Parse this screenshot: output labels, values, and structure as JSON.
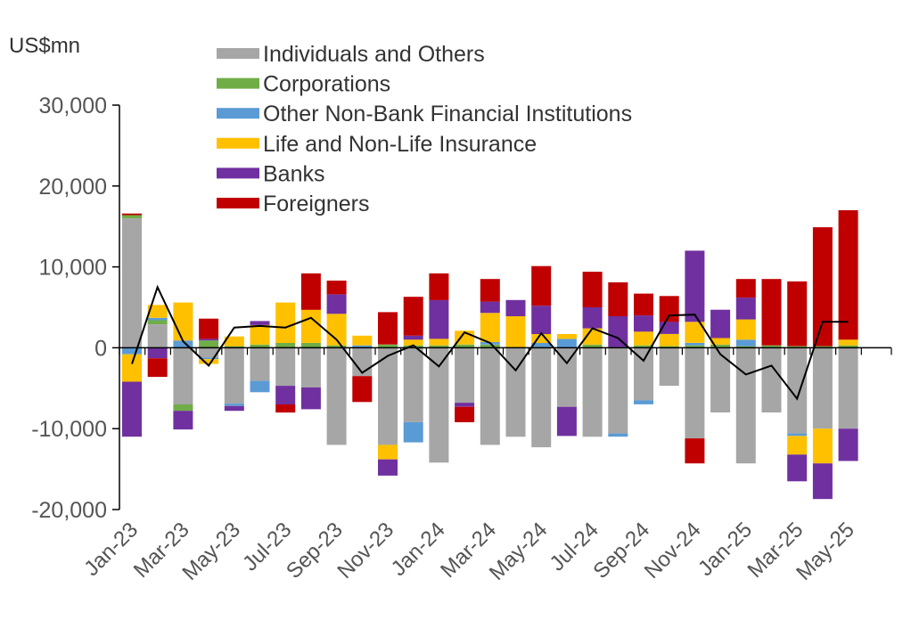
{
  "chart_data": {
    "type": "bar",
    "stacked": true,
    "unit_label": "US$mn",
    "title": "",
    "xlabel": "",
    "ylabel": "",
    "ylim": [
      -20000,
      30000
    ],
    "y_ticks": [
      30000,
      20000,
      10000,
      0,
      -10000,
      -20000
    ],
    "y_tick_labels": [
      "30,000",
      "20,000",
      "10,000",
      "0",
      "-10,000",
      "-20,000"
    ],
    "grid": false,
    "legend_position": "top-left",
    "categories": [
      "Jan-23",
      "Feb-23",
      "Mar-23",
      "Apr-23",
      "May-23",
      "Jun-23",
      "Jul-23",
      "Aug-23",
      "Sep-23",
      "Oct-23",
      "Nov-23",
      "Dec-23",
      "Jan-24",
      "Feb-24",
      "Mar-24",
      "Apr-24",
      "May-24",
      "Jun-24",
      "Jul-24",
      "Aug-24",
      "Sep-24",
      "Oct-24",
      "Nov-24",
      "Dec-24",
      "Jan-25",
      "Feb-25",
      "Mar-25",
      "Apr-25",
      "May-25"
    ],
    "x_tick_labels": [
      "Jan-23",
      "Mar-23",
      "May-23",
      "Jul-23",
      "Sep-23",
      "Nov-23",
      "Jan-24",
      "Mar-24",
      "May-24",
      "Jul-24",
      "Sep-24",
      "Nov-24",
      "Jan-25",
      "Mar-25",
      "May-25"
    ],
    "series": [
      {
        "name": "Individuals and Others",
        "color": "#a6a6a6",
        "values": [
          16000,
          2900,
          -7000,
          -1200,
          -6900,
          -4100,
          -4700,
          -4900,
          -12000,
          -3500,
          -12000,
          -9200,
          -14200,
          -6800,
          -12000,
          -11000,
          -12300,
          -7300,
          -11000,
          -10600,
          -6500,
          -4700,
          -11200,
          -8000,
          -14300,
          -8000,
          -10600,
          -10000,
          -10000
        ]
      },
      {
        "name": "Corporations",
        "color": "#70ad47",
        "values": [
          400,
          500,
          -800,
          900,
          200,
          400,
          600,
          600,
          300,
          0,
          400,
          300,
          300,
          400,
          400,
          100,
          100,
          0,
          400,
          100,
          300,
          200,
          300,
          400,
          200,
          300,
          200,
          200,
          300
        ]
      },
      {
        "name": "Other Non-Bank Financial Institutions",
        "color": "#5b9bd5",
        "values": [
          -800,
          300,
          900,
          -200,
          -300,
          -1400,
          0,
          0,
          0,
          300,
          0,
          -2500,
          0,
          0,
          300,
          0,
          500,
          1100,
          0,
          -400,
          -500,
          0,
          300,
          0,
          800,
          0,
          -300,
          0,
          0
        ]
      },
      {
        "name": "Life and Non-Life Insurance",
        "color": "#ffc000",
        "values": [
          -3400,
          1600,
          4700,
          -600,
          1200,
          2400,
          5000,
          4100,
          3900,
          1200,
          -1800,
          700,
          800,
          1700,
          3600,
          3800,
          1100,
          600,
          2000,
          0,
          1700,
          1500,
          2600,
          800,
          2500,
          0,
          -2300,
          -4300,
          700
        ]
      },
      {
        "name": "Banks",
        "color": "#7030a0",
        "values": [
          -6800,
          -1300,
          -2300,
          200,
          -600,
          500,
          -2300,
          -2700,
          2400,
          0,
          -2000,
          500,
          4800,
          -500,
          1400,
          2000,
          3500,
          -3600,
          2600,
          3800,
          2000,
          1500,
          8800,
          3500,
          2700,
          0,
          -3300,
          -4400,
          -4000
        ]
      },
      {
        "name": "Foreigners",
        "color": "#c00000",
        "values": [
          200,
          -2300,
          0,
          2500,
          0,
          0,
          -1000,
          4500,
          1700,
          -3200,
          4000,
          4800,
          3300,
          -1900,
          2800,
          0,
          4900,
          0,
          4400,
          4200,
          2700,
          3200,
          -3100,
          0,
          2300,
          8200,
          8000,
          14700,
          16000
        ]
      }
    ],
    "net_line": {
      "color": "#000000",
      "values": [
        -2000,
        7500,
        800,
        -2200,
        2500,
        2700,
        2500,
        3700,
        1000,
        -3100,
        -1000,
        300,
        -2300,
        1900,
        600,
        -2800,
        1800,
        -1900,
        2400,
        1200,
        -1600,
        4000,
        4100,
        -800,
        -3300,
        -2200,
        -6300,
        3200,
        3200
      ]
    }
  }
}
